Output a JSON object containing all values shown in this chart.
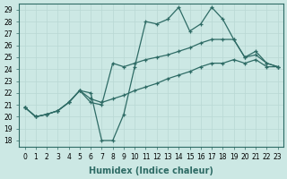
{
  "xlabel": "Humidex (Indice chaleur)",
  "bg_color": "#cce8e4",
  "line_color": "#2e6b65",
  "xlim": [
    -0.5,
    23.5
  ],
  "ylim": [
    17.5,
    29.5
  ],
  "xticks": [
    0,
    1,
    2,
    3,
    4,
    5,
    6,
    7,
    8,
    9,
    10,
    11,
    12,
    13,
    14,
    15,
    16,
    17,
    18,
    19,
    20,
    21,
    22,
    23
  ],
  "yticks": [
    18,
    19,
    20,
    21,
    22,
    23,
    24,
    25,
    26,
    27,
    28,
    29
  ],
  "lines": [
    [
      20.8,
      20.0,
      20.2,
      20.5,
      21.2,
      22.2,
      22.0,
      18.0,
      18.0,
      20.2,
      24.2,
      28.0,
      27.8,
      28.2,
      29.2,
      27.2,
      27.8,
      29.2,
      28.2,
      26.5,
      25.0,
      25.2,
      24.5,
      24.2
    ],
    [
      20.8,
      20.0,
      20.2,
      20.5,
      21.2,
      22.2,
      21.2,
      21.0,
      24.5,
      24.2,
      24.5,
      24.8,
      25.0,
      25.2,
      25.5,
      25.8,
      26.2,
      26.5,
      26.5,
      26.5,
      25.0,
      25.5,
      24.5,
      24.2
    ],
    [
      20.8,
      20.0,
      20.2,
      20.5,
      21.2,
      22.2,
      21.5,
      21.2,
      21.5,
      21.8,
      22.2,
      22.5,
      22.8,
      23.2,
      23.5,
      23.8,
      24.2,
      24.5,
      24.5,
      24.8,
      24.5,
      24.8,
      24.2,
      24.2
    ]
  ],
  "grid_color": "#b8d8d4",
  "spine_color": "#2e6b65",
  "xlabel_fontsize": 7,
  "tick_fontsize": 5.5,
  "linewidth": 0.9,
  "markersize": 3.5,
  "figsize": [
    3.2,
    2.0
  ],
  "dpi": 100
}
